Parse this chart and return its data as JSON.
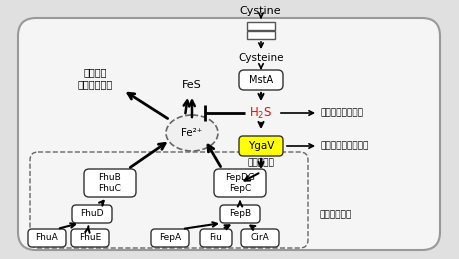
{
  "bg_color": "#e8e8e8",
  "title_cystine": "Cystine",
  "label_cysteine": "Cysteine",
  "label_FeS": "FeS",
  "label_Fe2": "Fe²⁺",
  "label_H2S_r": "H",
  "label_H2S_sub": "2",
  "label_H2S_s": "S",
  "label_MstA": "MstA",
  "label_YgaV": "YgaV",
  "label_abr": "抗生物質耐性強化",
  "label_redox": "レドックスバランス",
  "label_txn": "転写活性化",
  "label_iron_avail_1": "細胞内で",
  "label_iron_avail_2": "利用可能な鱄",
  "label_iron_import": "鱄の取り込み"
}
